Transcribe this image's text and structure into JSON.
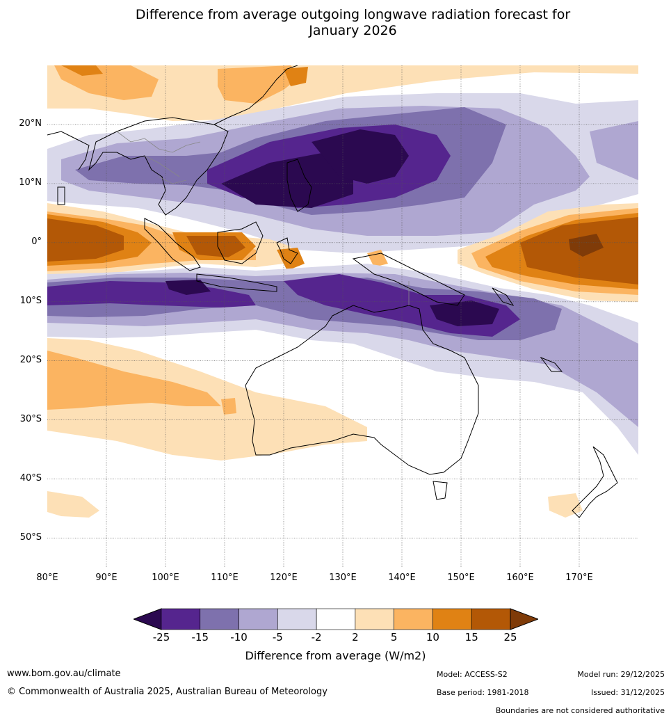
{
  "title": {
    "line1": "Difference from average outgoing longwave radiation forecast for",
    "line2": "January 2026"
  },
  "map": {
    "lat_labels": [
      "20°N",
      "10°N",
      "0°",
      "10°S",
      "20°S",
      "30°S",
      "40°S",
      "50°S"
    ],
    "lon_labels": [
      "80°E",
      "90°E",
      "100°E",
      "110°E",
      "120°E",
      "130°E",
      "140°E",
      "150°E",
      "160°E",
      "170°E"
    ],
    "lat_values": [
      20,
      10,
      0,
      -10,
      -20,
      -30,
      -40,
      -50
    ],
    "lon_values": [
      80,
      90,
      100,
      110,
      120,
      130,
      140,
      150,
      160,
      170
    ],
    "lon_range": [
      80,
      180
    ],
    "lat_range": [
      -55,
      30
    ]
  },
  "legend": {
    "tick_labels": [
      "-25",
      "-15",
      "-10",
      "-5",
      "-2",
      "2",
      "5",
      "10",
      "15",
      "25"
    ],
    "colors": [
      "#2b0950",
      "#55258e",
      "#7e71ad",
      "#afa7d1",
      "#d9d8ea",
      "#ffffff",
      "#fde0b6",
      "#fbb461",
      "#e08214",
      "#b35806",
      "#7f3b08"
    ],
    "title": "Difference from average (W/m2)"
  },
  "footer": {
    "website": "www.bom.gov.au/climate",
    "copyright": "© Commonwealth of Australia 2025, Australian Bureau of Meteorology",
    "model": "Model: ACCESS-S2",
    "base_period": "Base period: 1981-2018",
    "model_run": "Model run: 29/12/2025",
    "issued": "Issued: 31/12/2025",
    "disclaimer": "Boundaries are not considered authoritative"
  }
}
